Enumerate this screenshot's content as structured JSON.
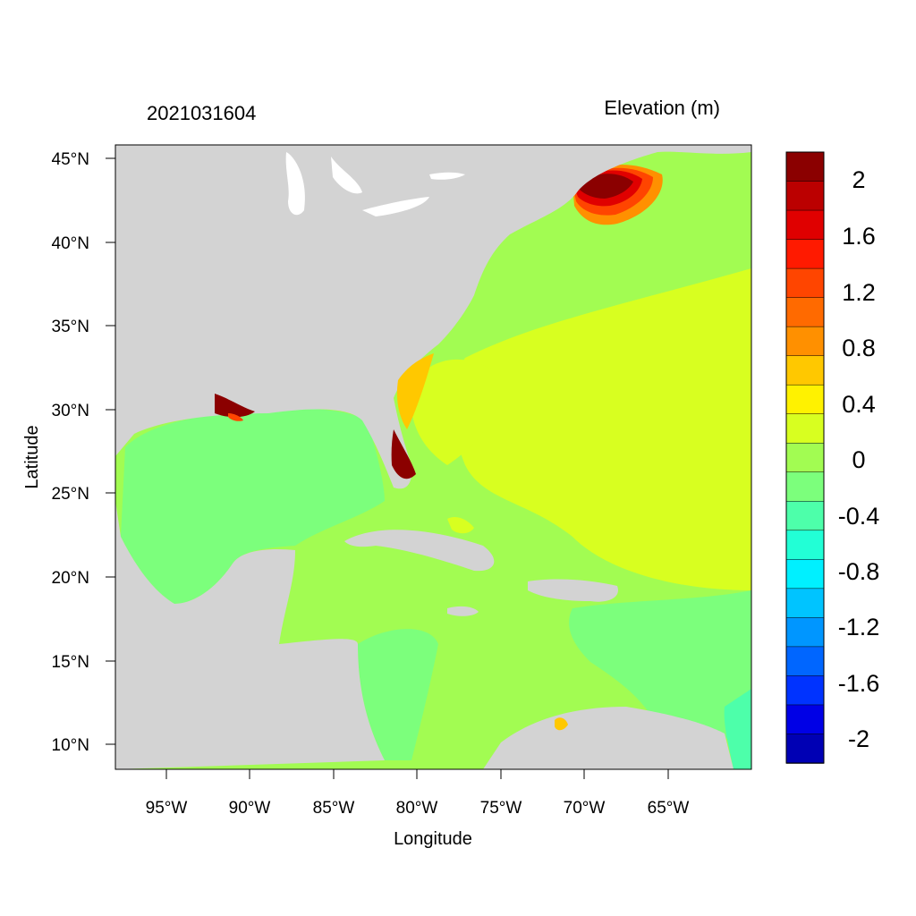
{
  "map": {
    "left_title": "2021031604",
    "right_title": "Elevation (m)",
    "xlabel": "Longitude",
    "ylabel": "Latitude",
    "lon_ticks": [
      "95°W",
      "90°W",
      "85°W",
      "80°W",
      "75°W",
      "70°W",
      "65°W"
    ],
    "lat_ticks": [
      "45°N",
      "40°N",
      "35°N",
      "30°N",
      "25°N",
      "20°N",
      "15°N",
      "10°N"
    ],
    "land_color": "#d3d3d3"
  },
  "colorbar": {
    "labels": [
      "2",
      "1.6",
      "1.2",
      "0.8",
      "0.4",
      "0",
      "-0.4",
      "-0.8",
      "-1.2",
      "-1.6",
      "-2"
    ],
    "colors": [
      "#8b0000",
      "#bb0000",
      "#e00000",
      "#ff1a00",
      "#ff4500",
      "#ff6a00",
      "#ff9000",
      "#ffc800",
      "#fff200",
      "#d8ff20",
      "#a2fc52",
      "#7cff7c",
      "#4dffaa",
      "#22ffd6",
      "#00f0ff",
      "#00c4ff",
      "#0096ff",
      "#0066ff",
      "#0033ff",
      "#0000e6",
      "#0000b4"
    ]
  }
}
